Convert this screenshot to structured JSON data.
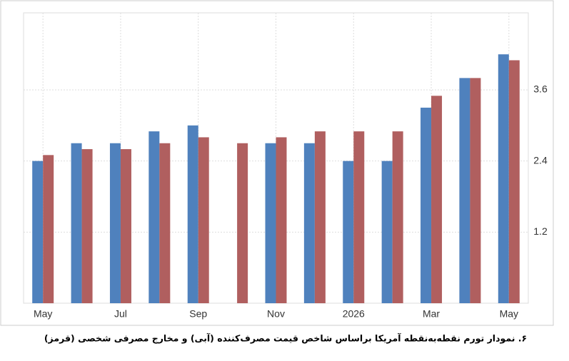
{
  "chart_data": {
    "type": "bar",
    "caption": "۶. نمودار تورم نقطه‌به‌نقطه آمریکا براساس شاخص قیمت مصرف‌کننده (آبی) و مخارج مصرفی شخصی (قرمز)",
    "categories": [
      "May",
      null,
      "Jul",
      null,
      "Sep",
      null,
      "Nov",
      null,
      "2026",
      null,
      "Mar",
      null,
      "May"
    ],
    "series": [
      {
        "color": "#4f81bd",
        "values": [
          2.4,
          2.7,
          2.7,
          2.9,
          3.0,
          null,
          2.7,
          2.7,
          2.4,
          2.4,
          3.3,
          3.8,
          4.2
        ]
      },
      {
        "color": "#b05f5f",
        "values": [
          2.5,
          2.6,
          2.6,
          2.7,
          2.8,
          2.7,
          2.8,
          2.9,
          2.9,
          2.9,
          3.5,
          3.8,
          4.1
        ]
      }
    ],
    "ylim": [
      0,
      4.9
    ],
    "yticks": [
      1.2,
      2.4,
      3.6
    ],
    "grid": true
  }
}
